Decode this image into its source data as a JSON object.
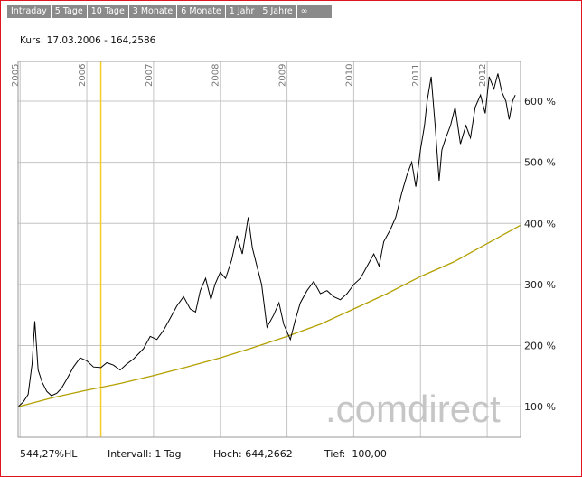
{
  "tabs": [
    "Intraday",
    "5 Tage",
    "10 Tage",
    "3 Monate",
    "6 Monate",
    "1 Jahr",
    "5 Jahre",
    "∞"
  ],
  "kurs_label": "Kurs: 17.03.2006 - 164,2586",
  "watermark": ".comdirect",
  "footer": {
    "performance": "544,27%HL",
    "interval": "Intervall: 1 Tag",
    "high": "Hoch: 644,2662",
    "low": "Tief:  100,00"
  },
  "colors": {
    "frame": "#e0141e",
    "tab_bg": "#8a8a8a",
    "price_line": "#000000",
    "trend_line": "#b3a000",
    "cursor_line": "#f5cd2a",
    "grid": "#c4c4c4",
    "watermark": "#c6c6c6"
  },
  "chart_data": {
    "type": "line",
    "title": "",
    "xlabel": "",
    "ylabel": "",
    "x_ticks": [
      "2005",
      "2006",
      "2007",
      "2008",
      "2009",
      "2010",
      "2011",
      "2012"
    ],
    "y_ticks": [
      "100 %",
      "200 %",
      "300 %",
      "400 %",
      "500 %",
      "600 %"
    ],
    "ylim": [
      50,
      665
    ],
    "xlim": [
      2004.97,
      2012.5
    ],
    "grid": true,
    "cursor_x": 2006.21,
    "series": [
      {
        "role": "price",
        "x": [
          2004.97,
          2005.05,
          2005.12,
          2005.18,
          2005.22,
          2005.27,
          2005.33,
          2005.4,
          2005.47,
          2005.55,
          2005.62,
          2005.7,
          2005.8,
          2005.9,
          2006.0,
          2006.1,
          2006.21,
          2006.3,
          2006.4,
          2006.5,
          2006.6,
          2006.7,
          2006.85,
          2006.95,
          2007.05,
          2007.15,
          2007.25,
          2007.35,
          2007.45,
          2007.55,
          2007.63,
          2007.7,
          2007.78,
          2007.86,
          2007.92,
          2008.0,
          2008.08,
          2008.17,
          2008.25,
          2008.33,
          2008.42,
          2008.48,
          2008.55,
          2008.62,
          2008.7,
          2008.8,
          2008.88,
          2008.95,
          2009.05,
          2009.12,
          2009.2,
          2009.3,
          2009.4,
          2009.5,
          2009.6,
          2009.7,
          2009.8,
          2009.9,
          2010.0,
          2010.1,
          2010.2,
          2010.3,
          2010.38,
          2010.45,
          2010.55,
          2010.63,
          2010.72,
          2010.8,
          2010.87,
          2010.93,
          2011.0,
          2011.06,
          2011.1,
          2011.16,
          2011.22,
          2011.28,
          2011.32,
          2011.38,
          2011.45,
          2011.52,
          2011.6,
          2011.68,
          2011.75,
          2011.82,
          2011.9,
          2011.97,
          2012.03,
          2012.1,
          2012.16,
          2012.22,
          2012.28,
          2012.33,
          2012.38,
          2012.42
        ],
        "y": [
          100,
          108,
          120,
          170,
          240,
          160,
          140,
          125,
          118,
          122,
          130,
          145,
          165,
          180,
          175,
          165,
          164,
          172,
          168,
          160,
          170,
          178,
          195,
          215,
          210,
          225,
          245,
          265,
          280,
          260,
          255,
          290,
          310,
          275,
          300,
          320,
          310,
          340,
          380,
          350,
          410,
          360,
          330,
          300,
          230,
          250,
          270,
          235,
          210,
          240,
          270,
          290,
          305,
          285,
          290,
          280,
          275,
          285,
          300,
          310,
          330,
          350,
          330,
          370,
          390,
          410,
          450,
          480,
          500,
          460,
          520,
          560,
          600,
          640,
          560,
          470,
          520,
          540,
          560,
          590,
          530,
          560,
          540,
          590,
          610,
          580,
          640,
          620,
          645,
          615,
          600,
          570,
          600,
          610
        ]
      },
      {
        "role": "trend",
        "x": [
          2004.97,
          2005.5,
          2006.0,
          2006.5,
          2007.0,
          2007.5,
          2008.0,
          2008.5,
          2009.0,
          2009.5,
          2010.0,
          2010.5,
          2011.0,
          2011.5,
          2012.0,
          2012.5
        ],
        "y": [
          100,
          115,
          127,
          138,
          151,
          165,
          180,
          197,
          215,
          235,
          260,
          285,
          313,
          337,
          367,
          397
        ]
      }
    ]
  }
}
